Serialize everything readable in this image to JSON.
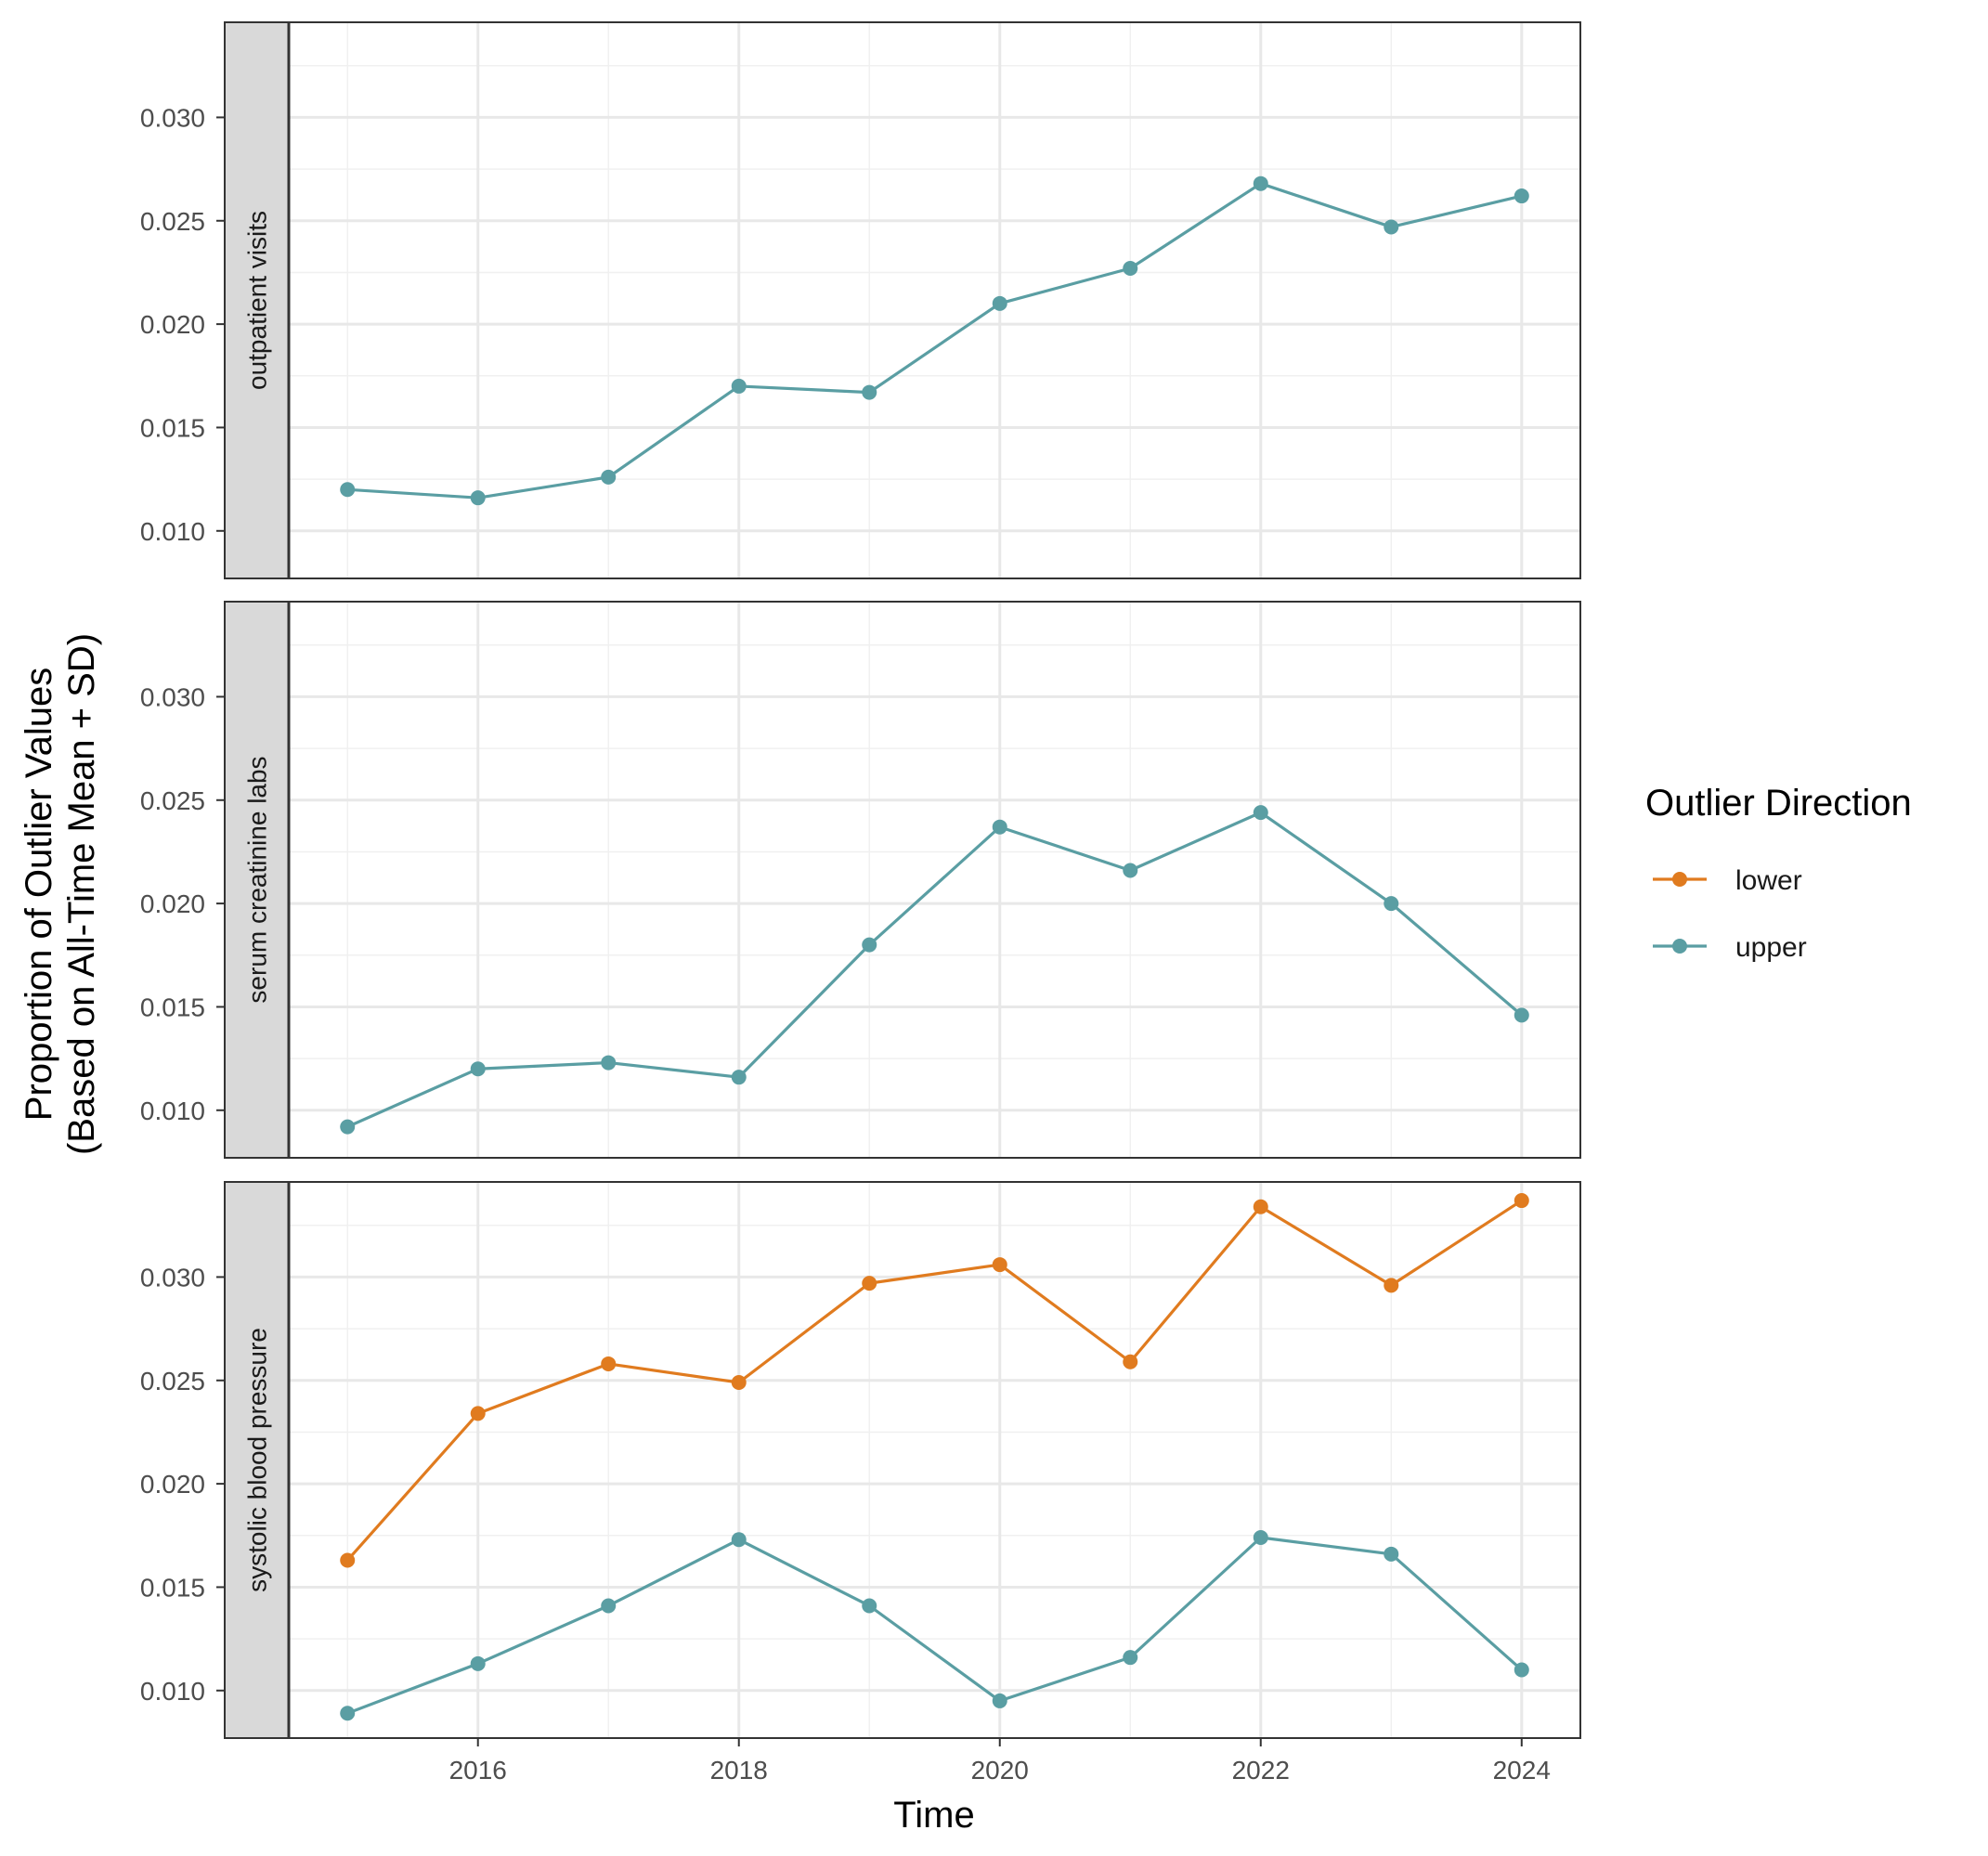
{
  "chart_data": {
    "type": "line",
    "xlabel": "Time",
    "ylabel_line1": "Proportion of Outlier Values",
    "ylabel_line2": "(Based on All-Time Mean + SD)",
    "x": [
      2015,
      2016,
      2017,
      2018,
      2019,
      2020,
      2021,
      2022,
      2023,
      2024
    ],
    "xticks": [
      "2016",
      "2018",
      "2020",
      "2022",
      "2024"
    ],
    "yticks": [
      "0.010",
      "0.015",
      "0.020",
      "0.025",
      "0.030"
    ],
    "ylim": [
      0.0077,
      0.0346
    ],
    "xlim": [
      2014.55,
      2024.45
    ],
    "grid": true,
    "legend": {
      "title": "Outlier Direction",
      "position": "right",
      "entries": [
        {
          "name": "lower",
          "color": "#E07B1F"
        },
        {
          "name": "upper",
          "color": "#5A9EA3"
        }
      ]
    },
    "panels": [
      {
        "label": "outpatient visits",
        "series": [
          {
            "name": "upper",
            "color": "#5A9EA3",
            "values": [
              0.012,
              0.0116,
              0.0126,
              0.017,
              0.0167,
              0.021,
              0.0227,
              0.0268,
              0.0247,
              0.0262
            ]
          }
        ]
      },
      {
        "label": "serum creatinine labs",
        "series": [
          {
            "name": "upper",
            "color": "#5A9EA3",
            "values": [
              0.0092,
              0.012,
              0.0123,
              0.0116,
              0.018,
              0.0237,
              0.0216,
              0.0244,
              0.02,
              0.0146
            ]
          }
        ]
      },
      {
        "label": "systolic blood pressure",
        "series": [
          {
            "name": "lower",
            "color": "#E07B1F",
            "values": [
              0.0163,
              0.0234,
              0.0258,
              0.0249,
              0.0297,
              0.0306,
              0.0259,
              0.0334,
              0.0296,
              0.0337
            ]
          },
          {
            "name": "upper",
            "color": "#5A9EA3",
            "values": [
              0.0089,
              0.0113,
              0.0141,
              0.0173,
              0.0141,
              0.0095,
              0.0116,
              0.0174,
              0.0166,
              0.011
            ]
          }
        ]
      }
    ]
  }
}
